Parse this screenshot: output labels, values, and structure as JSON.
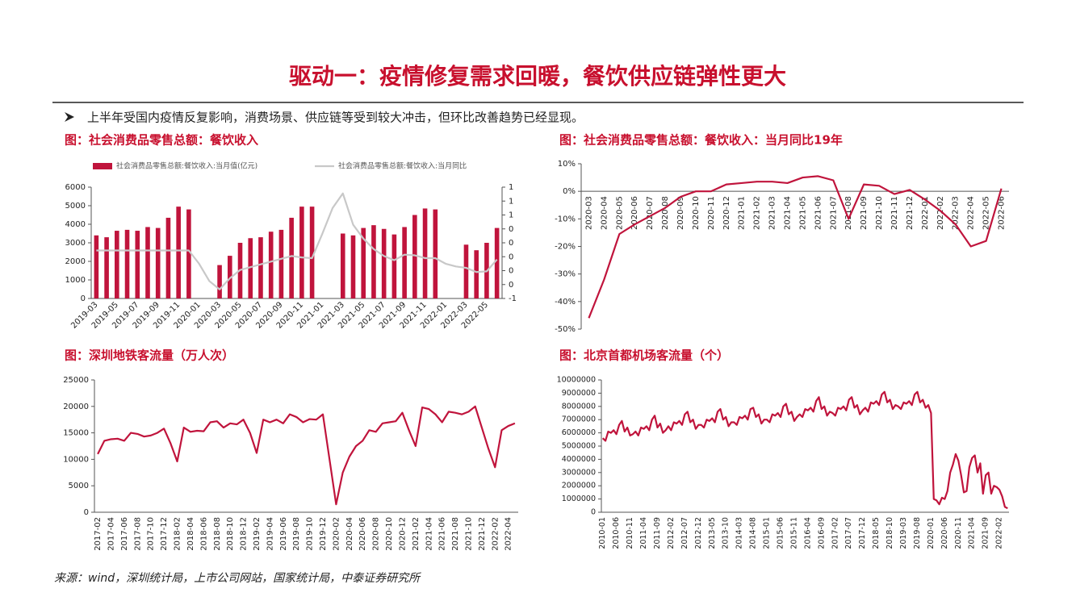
{
  "page": {
    "title": "驱动一：疫情修复需求回暖，餐饮供应链弹性更大",
    "bullet": "上半年受国内疫情反复影响，消费场景、供应链等受到较大冲击，但环比改善趋势已经显现。",
    "source": "来源：wind，深圳统计局，上市公司网站，国家统计局，中泰证券研究所"
  },
  "chart_data": [
    {
      "type": "combo",
      "title": "图：社会消费品零售总额：餐饮收入",
      "legend": "top",
      "categories": [
        "2019-03",
        null,
        "2019-05",
        null,
        "2019-07",
        null,
        "2019-09",
        null,
        "2019-11",
        null,
        "2020-01",
        null,
        "2020-03",
        null,
        "2020-05",
        null,
        "2020-07",
        null,
        "2020-09",
        null,
        "2020-11",
        null,
        "2021-01",
        null,
        "2021-03",
        null,
        "2021-05",
        null,
        "2021-07",
        null,
        "2021-09",
        null,
        "2021-11",
        null,
        "2022-01",
        null,
        "2022-03",
        null,
        "2022-05",
        null
      ],
      "series": [
        {
          "name": "社会消费品零售总额:餐饮收入:当月值(亿元)",
          "type": "bar",
          "color": "#c0143c",
          "values": [
            3400,
            3300,
            3650,
            3700,
            3650,
            3850,
            3800,
            4350,
            4950,
            4800,
            null,
            null,
            1800,
            2300,
            3000,
            3250,
            3300,
            3600,
            3700,
            4350,
            4950,
            4950,
            null,
            null,
            3500,
            3400,
            3800,
            3950,
            3750,
            3450,
            3850,
            4500,
            4850,
            4800,
            null,
            null,
            2900,
            2600,
            3000,
            3800
          ]
        },
        {
          "name": "社会消费品零售总额:餐饮收入:当月同比",
          "type": "line",
          "axis": "y2",
          "color": "#c8c8c8",
          "values": [
            0.09,
            0.09,
            0.09,
            0.09,
            0.09,
            0.09,
            0.09,
            0.09,
            0.09,
            0.09,
            -0.1,
            -0.35,
            -0.47,
            -0.31,
            -0.19,
            -0.15,
            -0.11,
            -0.07,
            -0.03,
            0.01,
            -0.01,
            -0.02,
            0.33,
            0.7,
            0.91,
            0.46,
            0.26,
            0.11,
            0.01,
            -0.05,
            0.03,
            0.02,
            -0.02,
            -0.02,
            -0.1,
            -0.14,
            -0.16,
            -0.22,
            -0.21,
            -0.04
          ]
        }
      ],
      "ylim": [
        0,
        6000
      ],
      "yticks": [
        0,
        1000,
        2000,
        3000,
        4000,
        5000,
        6000
      ],
      "y2lim": [
        -0.6,
        1
      ],
      "y2ticks": [
        {
          "value": -0.6,
          "label": "-1"
        },
        {
          "value": -0.4,
          "label": "0"
        },
        {
          "value": -0.2,
          "label": "0"
        },
        0,
        {
          "value": 0.2,
          "label": "0"
        },
        {
          "value": 0.4,
          "label": "0"
        },
        {
          "value": 0.6,
          "label": "1"
        },
        {
          "value": 0.8,
          "label": "1"
        },
        1
      ]
    },
    {
      "type": "line",
      "title": "图：社会消费品零售总额：餐饮收入：当月同比19年",
      "categories": [
        "2020-03",
        "2020-04",
        "2020-05",
        "2020-06",
        "2020-07",
        "2020-08",
        "2020-09",
        "2020-10",
        "2020-11",
        "2020-12",
        "2021-01",
        "2021-02",
        "2021-03",
        "2021-04",
        "2021-05",
        "2021-06",
        "2021-07",
        "2021-08",
        "2021-09",
        "2021-10",
        "2021-11",
        "2021-12",
        "2022-01",
        "2022-02",
        "2022-03",
        "2022-04",
        "2022-05",
        "2022-06"
      ],
      "series": [
        {
          "color": "#c0143c",
          "values": [
            -46,
            -32,
            -15.5,
            -12,
            -9,
            -6,
            -2,
            0,
            0,
            2.5,
            3,
            3.5,
            3.5,
            3,
            5,
            5.5,
            4,
            -10,
            2.5,
            2,
            -1,
            0.5,
            -3,
            -7,
            -12,
            -20,
            -18,
            1
          ]
        }
      ],
      "ylim": [
        -50,
        10
      ],
      "yticks": [
        {
          "value": -50,
          "label": "-50%"
        },
        {
          "value": -40,
          "label": "-40%"
        },
        {
          "value": -30,
          "label": "-30%"
        },
        {
          "value": -20,
          "label": "-20%"
        },
        {
          "value": -10,
          "label": "-10%"
        },
        {
          "value": 0,
          "label": "0%"
        },
        {
          "value": 10,
          "label": "10%"
        }
      ]
    },
    {
      "type": "line",
      "title": "图：深圳地铁客流量（万人次）",
      "categories": [
        "2017-02",
        null,
        "2017-04",
        null,
        "2017-06",
        null,
        "2017-08",
        null,
        "2017-10",
        null,
        "2017-12",
        null,
        "2018-02",
        null,
        "2018-04",
        null,
        "2018-06",
        null,
        "2018-08",
        null,
        "2018-10",
        null,
        "2018-12",
        null,
        "2019-02",
        null,
        "2019-04",
        null,
        "2019-06",
        null,
        "2019-08",
        null,
        "2019-10",
        null,
        "2019-12",
        null,
        "2020-02",
        null,
        "2020-04",
        null,
        "2020-06",
        null,
        "2020-08",
        null,
        "2020-10",
        null,
        "2020-12",
        null,
        "2021-02",
        null,
        "2021-04",
        null,
        "2021-06",
        null,
        "2021-08",
        null,
        "2021-10",
        null,
        "2021-12",
        null,
        "2022-02",
        null,
        "2022-04",
        null
      ],
      "series": [
        {
          "color": "#c0143c",
          "values": [
            11000,
            13500,
            13800,
            13900,
            13500,
            15000,
            14800,
            14300,
            14500,
            15000,
            15800,
            13000,
            9600,
            16000,
            15200,
            15400,
            15300,
            17000,
            17200,
            16000,
            16800,
            16600,
            17500,
            15000,
            11200,
            17500,
            17000,
            17500,
            16800,
            18500,
            18000,
            17000,
            17600,
            17500,
            18500,
            10000,
            1500,
            7500,
            10500,
            12500,
            13500,
            15500,
            15200,
            16800,
            17000,
            17200,
            18800,
            15500,
            12500,
            19800,
            19500,
            18500,
            17000,
            19000,
            18800,
            18500,
            19000,
            20000,
            16000,
            12000,
            8500,
            15500,
            16300,
            16800
          ]
        }
      ],
      "ylim": [
        0,
        25000
      ],
      "yticks": [
        0,
        5000,
        10000,
        15000,
        20000,
        25000
      ]
    },
    {
      "type": "line",
      "title": "图：北京首都机场客流量（个）",
      "categories": [
        "2010-01",
        null,
        null,
        null,
        null,
        "2010-06",
        null,
        null,
        null,
        null,
        "2010-11",
        null,
        null,
        null,
        null,
        "2011-04",
        null,
        null,
        null,
        null,
        "2011-09",
        null,
        null,
        null,
        null,
        "2012-02",
        null,
        null,
        null,
        null,
        "2012-07",
        null,
        null,
        null,
        null,
        "2012-12",
        null,
        null,
        null,
        null,
        "2013-05",
        null,
        null,
        null,
        null,
        "2013-10",
        null,
        null,
        null,
        null,
        "2014-03",
        null,
        null,
        null,
        null,
        "2014-08",
        null,
        null,
        null,
        null,
        "2015-01",
        null,
        null,
        null,
        null,
        "2015-06",
        null,
        null,
        null,
        null,
        "2015-11",
        null,
        null,
        null,
        null,
        "2016-04",
        null,
        null,
        null,
        null,
        "2016-09",
        null,
        null,
        null,
        null,
        "2017-02",
        null,
        null,
        null,
        null,
        "2017-07",
        null,
        null,
        null,
        null,
        "2017-12",
        null,
        null,
        null,
        null,
        "2018-05",
        null,
        null,
        null,
        null,
        "2018-10",
        null,
        null,
        null,
        null,
        "2019-03",
        null,
        null,
        null,
        null,
        "2019-08",
        null,
        null,
        null,
        null,
        "2020-01",
        null,
        null,
        null,
        null,
        "2020-06",
        null,
        null,
        null,
        null,
        "2020-11",
        null,
        null,
        null,
        null,
        "2021-04",
        null,
        null,
        null,
        null,
        "2021-09",
        null,
        null,
        null,
        null,
        "2022-02",
        null,
        null,
        null
      ],
      "series": [
        {
          "color": "#c0143c",
          "values": [
            5600000,
            5400000,
            6100000,
            6000000,
            6200000,
            5900000,
            6600000,
            6900000,
            6100000,
            6400000,
            5800000,
            5900000,
            6100000,
            5800000,
            6400000,
            6300000,
            6500000,
            6200000,
            7000000,
            7300000,
            6400000,
            6700000,
            6000000,
            6200000,
            6500000,
            6200000,
            6800000,
            6700000,
            6900000,
            6600000,
            7400000,
            7600000,
            6800000,
            7000000,
            6300000,
            6600000,
            6600000,
            6400000,
            7000000,
            6900000,
            7100000,
            6800000,
            7600000,
            7800000,
            7000000,
            7200000,
            6500000,
            6800000,
            6800000,
            6600000,
            7200000,
            7100000,
            7300000,
            7000000,
            7800000,
            7900000,
            7200000,
            7400000,
            6700000,
            7000000,
            7000000,
            6800000,
            7400000,
            7300000,
            7500000,
            7200000,
            8000000,
            8200000,
            7400000,
            7600000,
            6900000,
            7200000,
            7400000,
            7200000,
            7800000,
            7700000,
            7900000,
            7600000,
            8400000,
            8700000,
            7800000,
            8000000,
            7300000,
            7600000,
            7500000,
            7300000,
            7900000,
            7800000,
            8000000,
            7700000,
            8500000,
            8700000,
            7900000,
            8100000,
            7400000,
            7700000,
            7900000,
            7600000,
            8300000,
            8200000,
            8400000,
            8100000,
            8900000,
            9100000,
            8300000,
            8500000,
            7800000,
            8100000,
            8000000,
            7800000,
            8300000,
            8200000,
            8400000,
            8100000,
            8900000,
            9100000,
            8300000,
            8500000,
            7900000,
            8100000,
            7500000,
            1000000,
            900000,
            600000,
            1100000,
            1000000,
            1600000,
            3000000,
            3600000,
            4400000,
            3900000,
            2800000,
            1500000,
            1600000,
            3400000,
            4100000,
            4300000,
            3000000,
            3700000,
            1400000,
            2800000,
            3000000,
            1400000,
            2000000,
            1900000,
            1700000,
            1200000,
            400000,
            300000
          ]
        }
      ],
      "ylim": [
        0,
        10000000
      ],
      "yticks": [
        0,
        1000000,
        2000000,
        3000000,
        4000000,
        5000000,
        6000000,
        7000000,
        8000000,
        9000000,
        10000000
      ]
    }
  ]
}
